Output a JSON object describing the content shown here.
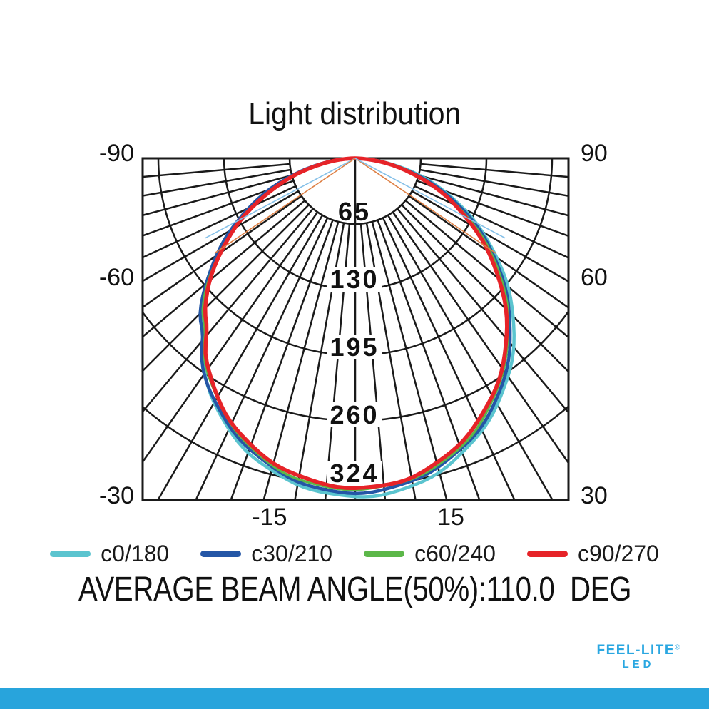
{
  "page": {
    "background": "#ffffff",
    "accent_bar_color": "#28A4DC"
  },
  "title": "Light distribution",
  "legend": {
    "items": [
      {
        "label": "c0/180",
        "color": "#5BC4CF"
      },
      {
        "label": "c30/210",
        "color": "#2456A6"
      },
      {
        "label": "c60/240",
        "color": "#5CB749"
      },
      {
        "label": "c90/270",
        "color": "#E62328"
      }
    ]
  },
  "beam_angle_line": "AVERAGE BEAM ANGLE(50%):110.0  DEG",
  "logo": {
    "brand": "FEEL-LITE",
    "registered": "®",
    "sub": "LED",
    "color": "#2AA7E1"
  },
  "chart_data": {
    "type": "polar_photometric",
    "title": "Light distribution",
    "units": "cd",
    "angle_axis": {
      "range_deg": [
        -90,
        90
      ],
      "grid_step_deg": 5,
      "labels": [
        "-90",
        "-60",
        "-30",
        "-15",
        "15",
        "30",
        "60",
        "90"
      ]
    },
    "radial_axis": {
      "ticks": [
        65,
        130,
        195,
        260,
        324
      ],
      "max": 338
    },
    "series": [
      {
        "name": "c0/180",
        "color": "#5BC4CF",
        "peak_cd": 335.0,
        "exp_left": 1.27,
        "exp_right": 1.2,
        "stroke_width": 4.5
      },
      {
        "name": "c30/210",
        "color": "#2456A6",
        "peak_cd": 331.0,
        "exp_left": 1.215,
        "exp_right": 1.225,
        "stroke_width": 4.5
      },
      {
        "name": "c60/240",
        "color": "#5CB749",
        "peak_cd": 328.5,
        "exp_left": 1.245,
        "exp_right": 1.245,
        "stroke_width": 3.5
      },
      {
        "name": "c90/270",
        "color": "#E62328",
        "peak_cd": 326.5,
        "exp_left": 1.255,
        "exp_right": 1.27,
        "stroke_width": 5.5
      }
    ],
    "approx_values": {
      "angles_deg": [
        -90,
        -75,
        -60,
        -45,
        -30,
        -15,
        0,
        15,
        30,
        45,
        60,
        75,
        90
      ],
      "intensity_cd": [
        0,
        62,
        138,
        212,
        274,
        314,
        328,
        314,
        274,
        212,
        138,
        62,
        0
      ]
    },
    "beam_indicator_lines": [
      {
        "angle_deg": -62,
        "color": "#85C0E8"
      },
      {
        "angle_deg": -56,
        "color": "#DE8045"
      },
      {
        "angle_deg": 56,
        "color": "#DE8045"
      },
      {
        "angle_deg": 62,
        "color": "#85C0E8"
      }
    ],
    "average_beam_angle_50pct_deg": 110.0,
    "legend_position": "bottom",
    "grid_color": "#1a1a1a"
  }
}
